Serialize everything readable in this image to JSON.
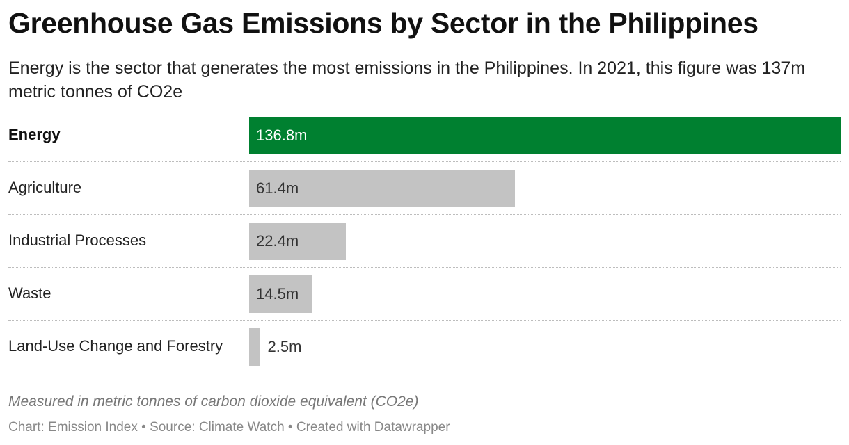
{
  "header": {
    "title": "Greenhouse Gas Emissions by Sector in the Philippines",
    "subtitle": "Energy is the sector that generates the most emissions in the Philippines. In 2021, this figure was 137m metric tonnes of CO2e"
  },
  "chart_data": {
    "type": "bar",
    "orientation": "horizontal",
    "categories": [
      "Energy",
      "Agriculture",
      "Industrial Processes",
      "Waste",
      "Land-Use Change and Forestry"
    ],
    "values": [
      136.8,
      61.4,
      22.4,
      14.5,
      2.5
    ],
    "value_labels": [
      "136.8m",
      "61.4m",
      "22.4m",
      "14.5m",
      "2.5m"
    ],
    "highlighted_category": "Energy",
    "xlim": [
      0,
      136.8
    ],
    "colors": {
      "highlight": "#008030",
      "default": "#c3c3c3"
    }
  },
  "notes": "Measured in metric tonnes of carbon dioxide equivalent (CO2e)",
  "footer": "Chart: Emission Index • Source: Climate Watch • Created with Datawrapper"
}
